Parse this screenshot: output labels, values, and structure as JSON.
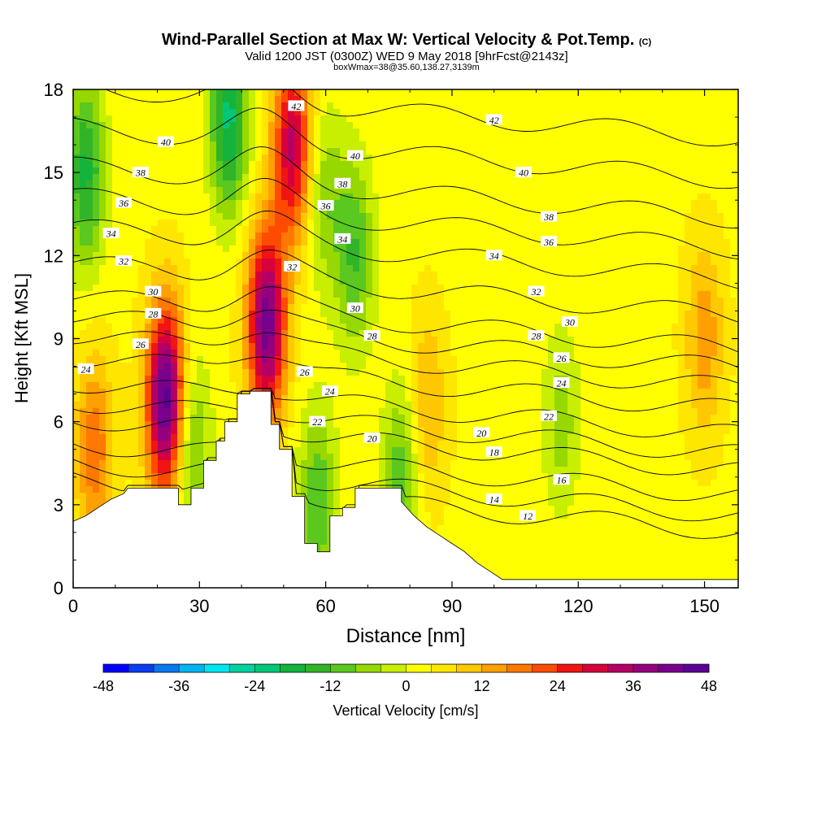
{
  "title": {
    "main": "Wind-Parallel Section at Max W: Vertical Velocity & Pot.Temp.",
    "unit": "(C)",
    "valid": "Valid 1200 JST (0300Z) WED 9 May 2018 [9hrFcst@2143z]",
    "box": "boxWmax=38@35.60,138.27,3139m"
  },
  "chart_data": {
    "type": "heatmap",
    "title": "Wind-Parallel Section at Max W: Vertical Velocity & Pot.Temp.",
    "xlabel": "Distance [nm]",
    "ylabel": "Height [Kft MSL]",
    "xlim": [
      0,
      158
    ],
    "ylim": [
      0,
      18
    ],
    "x_ticks": [
      "0",
      "30",
      "60",
      "90",
      "120",
      "150"
    ],
    "y_ticks": [
      "0",
      "3",
      "6",
      "9",
      "12",
      "15",
      "18"
    ],
    "colorbar": {
      "label": "Vertical Velocity [cm/s]",
      "min": -48,
      "max": 48,
      "ticks": [
        "-48",
        "-36",
        "-24",
        "-12",
        "0",
        "12",
        "24",
        "36",
        "48"
      ],
      "colors": [
        "#0000ff",
        "#0a3cf0",
        "#0a78f0",
        "#00b4f0",
        "#00e6f0",
        "#00d2a0",
        "#00c878",
        "#14b43c",
        "#32b428",
        "#5ac81e",
        "#96d800",
        "#c8ee00",
        "#ffff00",
        "#ffe600",
        "#ffc800",
        "#ffa000",
        "#ff7800",
        "#ff4b00",
        "#f01414",
        "#d7003c",
        "#b40064",
        "#96007d",
        "#78008c",
        "#5a0096"
      ]
    },
    "background_velocity": 3,
    "velocity_features": [
      {
        "x": 46,
        "y": 9.5,
        "value": 40
      },
      {
        "x": 52,
        "y": 16,
        "value": 30
      },
      {
        "x": 22,
        "y": 6.8,
        "value": 44
      },
      {
        "x": 37,
        "y": 17,
        "value": -24
      },
      {
        "x": 3,
        "y": 15,
        "value": -20
      },
      {
        "x": 58,
        "y": 3,
        "value": -15
      },
      {
        "x": 78,
        "y": 4,
        "value": -14
      },
      {
        "x": 116,
        "y": 6,
        "value": -9
      },
      {
        "x": 67,
        "y": 12,
        "value": -15
      },
      {
        "x": 5,
        "y": 5,
        "value": 16
      },
      {
        "x": 84,
        "y": 6.5,
        "value": 10
      },
      {
        "x": 150,
        "y": 9,
        "value": 12
      },
      {
        "x": 28,
        "y": 5,
        "value": -14
      },
      {
        "x": 60,
        "y": 14,
        "value": -10
      }
    ],
    "terrain_kft": [
      {
        "x": 0,
        "y": 2.4
      },
      {
        "x": 3,
        "y": 2.6
      },
      {
        "x": 6,
        "y": 2.9
      },
      {
        "x": 9,
        "y": 3.2
      },
      {
        "x": 12,
        "y": 3.4
      },
      {
        "x": 13,
        "y": 3.6
      },
      {
        "x": 25,
        "y": 3.6
      },
      {
        "x": 25,
        "y": 3.0
      },
      {
        "x": 28,
        "y": 3.0
      },
      {
        "x": 28,
        "y": 3.6
      },
      {
        "x": 31,
        "y": 3.6
      },
      {
        "x": 31,
        "y": 4.6
      },
      {
        "x": 34,
        "y": 4.6
      },
      {
        "x": 34,
        "y": 5.3
      },
      {
        "x": 36,
        "y": 5.3
      },
      {
        "x": 36,
        "y": 6.0
      },
      {
        "x": 39,
        "y": 6.0
      },
      {
        "x": 39,
        "y": 7.0
      },
      {
        "x": 42,
        "y": 7.0
      },
      {
        "x": 42,
        "y": 7.1
      },
      {
        "x": 47,
        "y": 7.1
      },
      {
        "x": 47,
        "y": 5.9
      },
      {
        "x": 49,
        "y": 5.9
      },
      {
        "x": 49,
        "y": 5.0
      },
      {
        "x": 52,
        "y": 5.0
      },
      {
        "x": 52,
        "y": 3.3
      },
      {
        "x": 55,
        "y": 3.3
      },
      {
        "x": 55,
        "y": 1.6
      },
      {
        "x": 58,
        "y": 1.6
      },
      {
        "x": 58,
        "y": 1.3
      },
      {
        "x": 61,
        "y": 1.3
      },
      {
        "x": 61,
        "y": 2.6
      },
      {
        "x": 64,
        "y": 2.6
      },
      {
        "x": 64,
        "y": 2.9
      },
      {
        "x": 67,
        "y": 2.9
      },
      {
        "x": 67,
        "y": 3.6
      },
      {
        "x": 78,
        "y": 3.6
      },
      {
        "x": 78,
        "y": 3.1
      },
      {
        "x": 81,
        "y": 2.6
      },
      {
        "x": 84,
        "y": 2.2
      },
      {
        "x": 87,
        "y": 1.9
      },
      {
        "x": 90,
        "y": 1.6
      },
      {
        "x": 93,
        "y": 1.3
      },
      {
        "x": 96,
        "y": 0.9
      },
      {
        "x": 99,
        "y": 0.6
      },
      {
        "x": 102,
        "y": 0.3
      },
      {
        "x": 158,
        "y": 0.3
      }
    ],
    "theta_contours": [
      {
        "value": 12,
        "offset": 3.2
      },
      {
        "value": 14,
        "offset": 3.8
      },
      {
        "value": 16,
        "offset": 4.5
      },
      {
        "value": 18,
        "offset": 5.4
      },
      {
        "value": 20,
        "offset": 6.0
      },
      {
        "value": 22,
        "offset": 6.7
      },
      {
        "value": 24,
        "offset": 7.6
      },
      {
        "value": 26,
        "offset": 8.4
      },
      {
        "value": 28,
        "offset": 9.1
      },
      {
        "value": 30,
        "offset": 9.8
      },
      {
        "value": 32,
        "offset": 11.0
      },
      {
        "value": 34,
        "offset": 12.3
      },
      {
        "value": 36,
        "offset": 13.4
      },
      {
        "value": 38,
        "offset": 14.5
      },
      {
        "value": 40,
        "offset": 15.9
      },
      {
        "value": 42,
        "offset": 17.4
      }
    ],
    "contour_labels": [
      {
        "text": "42",
        "x": 53,
        "y": 17.4
      },
      {
        "text": "42",
        "x": 100,
        "y": 16.9
      },
      {
        "text": "40",
        "x": 22,
        "y": 16.1
      },
      {
        "text": "40",
        "x": 67,
        "y": 15.6
      },
      {
        "text": "40",
        "x": 107,
        "y": 15.0
      },
      {
        "text": "38",
        "x": 16,
        "y": 15.0
      },
      {
        "text": "38",
        "x": 64,
        "y": 14.6
      },
      {
        "text": "38",
        "x": 113,
        "y": 13.4
      },
      {
        "text": "36",
        "x": 12,
        "y": 13.9
      },
      {
        "text": "36",
        "x": 60,
        "y": 13.8
      },
      {
        "text": "36",
        "x": 113,
        "y": 12.5
      },
      {
        "text": "34",
        "x": 9,
        "y": 12.8
      },
      {
        "text": "34",
        "x": 64,
        "y": 12.6
      },
      {
        "text": "34",
        "x": 100,
        "y": 12.0
      },
      {
        "text": "32",
        "x": 12,
        "y": 11.8
      },
      {
        "text": "32",
        "x": 52,
        "y": 11.6
      },
      {
        "text": "32",
        "x": 110,
        "y": 10.7
      },
      {
        "text": "30",
        "x": 19,
        "y": 10.7
      },
      {
        "text": "30",
        "x": 67,
        "y": 10.1
      },
      {
        "text": "30",
        "x": 118,
        "y": 9.6
      },
      {
        "text": "28",
        "x": 19,
        "y": 9.9
      },
      {
        "text": "28",
        "x": 71,
        "y": 9.1
      },
      {
        "text": "28",
        "x": 110,
        "y": 9.1
      },
      {
        "text": "26",
        "x": 16,
        "y": 8.8
      },
      {
        "text": "26",
        "x": 55,
        "y": 7.8
      },
      {
        "text": "26",
        "x": 116,
        "y": 8.3
      },
      {
        "text": "24",
        "x": 3,
        "y": 7.9
      },
      {
        "text": "24",
        "x": 61,
        "y": 7.1
      },
      {
        "text": "24",
        "x": 116,
        "y": 7.4
      },
      {
        "text": "22",
        "x": 58,
        "y": 6.0
      },
      {
        "text": "22",
        "x": 113,
        "y": 6.2
      },
      {
        "text": "20",
        "x": 71,
        "y": 5.4
      },
      {
        "text": "20",
        "x": 97,
        "y": 5.6
      },
      {
        "text": "18",
        "x": 100,
        "y": 4.9
      },
      {
        "text": "16",
        "x": 116,
        "y": 3.9
      },
      {
        "text": "14",
        "x": 100,
        "y": 3.2
      },
      {
        "text": "12",
        "x": 108,
        "y": 2.6
      }
    ]
  }
}
